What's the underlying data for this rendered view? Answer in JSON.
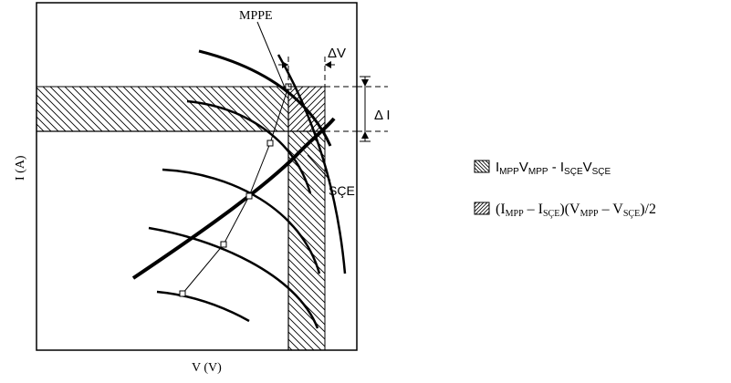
{
  "labels": {
    "mppe": "MPPE",
    "delta_v": "ΔV",
    "delta_i": "Δ I",
    "sce": "SÇE",
    "x_axis": "V (V)",
    "y_axis": "I (A)"
  },
  "legend": {
    "item1": {
      "i_main": "I",
      "i_sub": "MPP",
      "v_main": "V",
      "v_sub": "MPP",
      "minus": " - ",
      "i2_main": "I",
      "i2_sub": "SÇE",
      "v2_main": "V",
      "v2_sub": "SÇE"
    },
    "item2": {
      "open1": "(I",
      "sub1": "MPP",
      "minus1": " – I",
      "sub2": "SÇE",
      "close1": ")(V",
      "sub3": "MPP",
      "minus2": " – V",
      "sub4": "SÇE",
      "tail": ")/2"
    }
  },
  "colors": {
    "ink": "#000000",
    "background": "#ffffff"
  }
}
